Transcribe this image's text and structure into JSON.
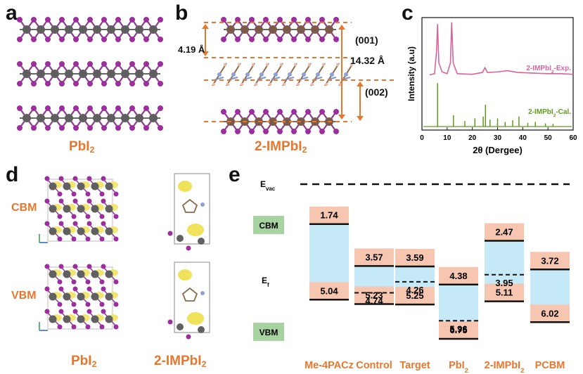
{
  "panel_labels": {
    "a": "a",
    "b": "b",
    "c": "c",
    "d": "d",
    "e": "e"
  },
  "panel_a": {
    "caption": "PbI",
    "caption_sub": "2"
  },
  "panel_b": {
    "caption": "2-IMPbI",
    "caption_sub": "2",
    "d_spacing": "4.19 Å",
    "plane_001": "(001)",
    "total_spacing": "14.32 Å",
    "plane_002": "(002)"
  },
  "panel_d": {
    "row_cbm": "CBM",
    "row_vbm": "VBM",
    "caption_left": "PbI",
    "caption_left_sub": "2",
    "caption_right": "2-IMPbI",
    "caption_right_sub": "2"
  },
  "chart_data": [
    {
      "panel": "c",
      "type": "line",
      "xlabel": "2θ (Dergee)",
      "ylabel": "Intensity (a.u)",
      "xlim": [
        0,
        60
      ],
      "xticks": [
        0,
        10,
        20,
        30,
        40,
        50,
        60
      ],
      "series": [
        {
          "name": "2-IMPbI2-Exp.",
          "color": "#d9639b",
          "label_main": "2-IMPbI",
          "label_sub": "2",
          "label_tail": "-Exp.",
          "points": [
            [
              3,
              0.1
            ],
            [
              5,
              0.12
            ],
            [
              5.8,
              0.5
            ],
            [
              6.2,
              0.95
            ],
            [
              6.7,
              0.3
            ],
            [
              8,
              0.15
            ],
            [
              10,
              0.12
            ],
            [
              11.3,
              0.3
            ],
            [
              11.8,
              0.98
            ],
            [
              12.4,
              0.3
            ],
            [
              14,
              0.12
            ],
            [
              20,
              0.11
            ],
            [
              24,
              0.14
            ],
            [
              25,
              0.22
            ],
            [
              26,
              0.14
            ],
            [
              30,
              0.15
            ],
            [
              34,
              0.17
            ],
            [
              38,
              0.14
            ],
            [
              44,
              0.13
            ],
            [
              50,
              0.12
            ],
            [
              55,
              0.12
            ],
            [
              60,
              0.11
            ]
          ]
        },
        {
          "name": "2-IMPbI2-Cal.",
          "color": "#5d9a1e",
          "label_main": "2-IMPbI",
          "label_sub": "2",
          "label_tail": "-Cal.",
          "sticks": [
            [
              6.2,
              0.95
            ],
            [
              12.5,
              0.25
            ],
            [
              17,
              0.12
            ],
            [
              21,
              0.18
            ],
            [
              24.3,
              0.22
            ],
            [
              25.2,
              0.48
            ],
            [
              27,
              0.15
            ],
            [
              30,
              0.18
            ],
            [
              33,
              0.1
            ],
            [
              36,
              0.14
            ],
            [
              38.5,
              0.22
            ],
            [
              42,
              0.08
            ],
            [
              45,
              0.1
            ],
            [
              49,
              0.07
            ],
            [
              52,
              0.06
            ]
          ]
        }
      ]
    },
    {
      "panel": "e",
      "type": "bar",
      "unit": "eV",
      "reference_labels": {
        "evac": "E",
        "evac_sub": "vac",
        "ef": "E",
        "ef_sub": "f",
        "cbm": "CBM",
        "vbm": "VBM"
      },
      "categories": [
        "Me-4PACz",
        "Control",
        "Target",
        "PbI2",
        "2-IMPbI2",
        "PCBM"
      ],
      "category_labels": [
        {
          "main": "Me-4PACz",
          "sub": ""
        },
        {
          "main": "Control",
          "sub": ""
        },
        {
          "main": "Target",
          "sub": ""
        },
        {
          "main": "PbI",
          "sub": "2"
        },
        {
          "main": "2-IMPbI",
          "sub": "2"
        },
        {
          "main": "PCBM",
          "sub": ""
        }
      ],
      "cbm": [
        1.74,
        3.57,
        3.59,
        4.38,
        2.47,
        3.72
      ],
      "vbm": [
        5.04,
        5.23,
        5.25,
        6.75,
        5.11,
        6.02
      ],
      "fermi": [
        null,
        4.74,
        4.26,
        5.96,
        3.95,
        null
      ],
      "colors": {
        "band": "#c6e9f7",
        "label_box": "#f6c6b1",
        "cbm_box": "#a6d3a0"
      }
    }
  ]
}
